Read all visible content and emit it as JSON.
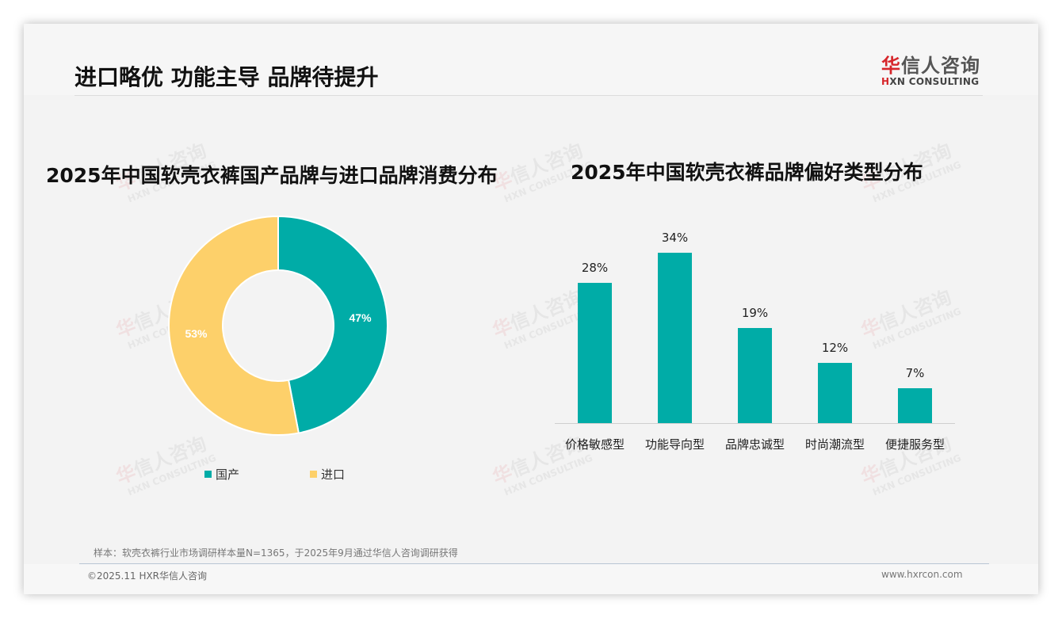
{
  "header": {
    "title": "进口略优 功能主导 品牌待提升",
    "logo_cn_red": "华",
    "logo_cn_rest": "信人咨询",
    "logo_en_red": "H",
    "logo_en_rest": "XN CONSULTING"
  },
  "watermark": {
    "cn_red": "华",
    "cn_rest": "信人咨询",
    "en": "HXN CONSULTING"
  },
  "colors": {
    "teal": "#00aca7",
    "yellow": "#fdd06a",
    "brand_red": "#d6262b"
  },
  "chart_data": [
    {
      "type": "pie",
      "subtype": "donut",
      "title": "2025年中国软壳衣裤国产品牌与进口品牌消费分布",
      "categories": [
        "国产",
        "进口"
      ],
      "values": [
        47,
        53
      ],
      "value_labels": [
        "47%",
        "53%"
      ],
      "colors": [
        "#00aca7",
        "#fdd06a"
      ],
      "legend_position": "bottom"
    },
    {
      "type": "bar",
      "title": "2025年中国软壳衣裤品牌偏好类型分布",
      "categories": [
        "价格敏感型",
        "功能导向型",
        "品牌忠诚型",
        "时尚潮流型",
        "便捷服务型"
      ],
      "values": [
        28,
        34,
        19,
        12,
        7
      ],
      "value_labels": [
        "28%",
        "34%",
        "19%",
        "12%",
        "7%"
      ],
      "xlabel": "",
      "ylabel": "",
      "unit": "%",
      "grid": false,
      "color": "#00aca7"
    }
  ],
  "footer": {
    "note": "样本：软壳衣裤行业市场调研样本量N=1365，于2025年9月通过华信人咨询调研获得",
    "copyright": "©2025.11 HXR华信人咨询",
    "website": "www.hxrcon.com"
  }
}
